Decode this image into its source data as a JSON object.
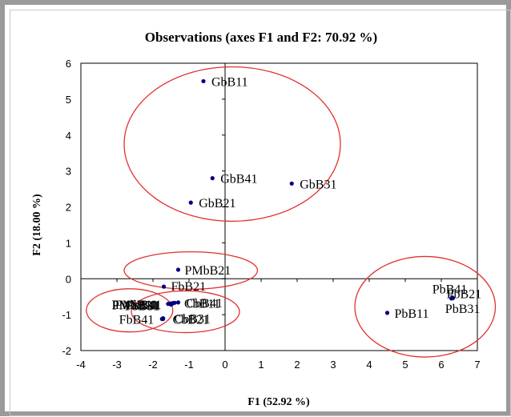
{
  "chart_data": {
    "type": "scatter",
    "title": "Observations (axes F1 and F2: 70.92 %)",
    "xlabel": "F1 (52.92 %)",
    "ylabel": "F2 (18.00 %)",
    "xlim": [
      -4,
      7
    ],
    "ylim": [
      -2,
      6
    ],
    "xticks": [
      "-4",
      "-3",
      "-2",
      "-1",
      "0",
      "1",
      "2",
      "3",
      "4",
      "5",
      "6",
      "7"
    ],
    "yticks": [
      "-2",
      "-1",
      "0",
      "1",
      "2",
      "3",
      "4",
      "5",
      "6"
    ],
    "grid": false,
    "point_color": "#00007f",
    "ellipse_color": "#e03030",
    "points": [
      {
        "label": "GbB11",
        "x": -0.6,
        "y": 5.5
      },
      {
        "label": "GbB41",
        "x": -0.35,
        "y": 2.8
      },
      {
        "label": "GbB31",
        "x": 1.85,
        "y": 2.65
      },
      {
        "label": "GbB21",
        "x": -0.95,
        "y": 2.12
      },
      {
        "label": "PMbB21",
        "x": -1.3,
        "y": 0.25
      },
      {
        "label": "FbB21",
        "x": -1.7,
        "y": -0.22
      },
      {
        "label": "CbB41",
        "x": -1.3,
        "y": -0.66
      },
      {
        "label": "CbB11",
        "x": -1.4,
        "y": -0.67
      },
      {
        "label": "CbB31",
        "x": -1.72,
        "y": -1.1
      },
      {
        "label": "CbB21",
        "x": -1.72,
        "y": -1.12
      },
      {
        "label": "FbB11",
        "x": -1.58,
        "y": -0.7
      },
      {
        "label": "FbB31",
        "x": -1.5,
        "y": -0.72
      },
      {
        "label": "PMbB11",
        "x": -1.45,
        "y": -0.68
      },
      {
        "label": "PMbB31",
        "x": -1.47,
        "y": -0.7
      },
      {
        "label": "PMbB41",
        "x": -1.52,
        "y": -0.69
      },
      {
        "label": "FbB41",
        "x": -1.75,
        "y": -1.12
      },
      {
        "label": "PbB41",
        "x": 6.3,
        "y": -0.52
      },
      {
        "label": "PbB21",
        "x": 6.32,
        "y": -0.54
      },
      {
        "label": "PbB31",
        "x": 6.28,
        "y": -0.55
      },
      {
        "label": "PbB11",
        "x": 4.5,
        "y": -0.95
      }
    ],
    "ellipses": [
      {
        "cx": 0.2,
        "cy": 3.75,
        "rx": 3.0,
        "ry": 2.15
      },
      {
        "cx": -0.95,
        "cy": 0.23,
        "rx": 1.85,
        "ry": 0.52
      },
      {
        "cx": -2.65,
        "cy": -0.88,
        "rx": 1.2,
        "ry": 0.6
      },
      {
        "cx": -1.1,
        "cy": -0.92,
        "rx": 1.5,
        "ry": 0.58
      },
      {
        "cx": 5.55,
        "cy": -0.78,
        "rx": 1.95,
        "ry": 1.4
      }
    ]
  }
}
